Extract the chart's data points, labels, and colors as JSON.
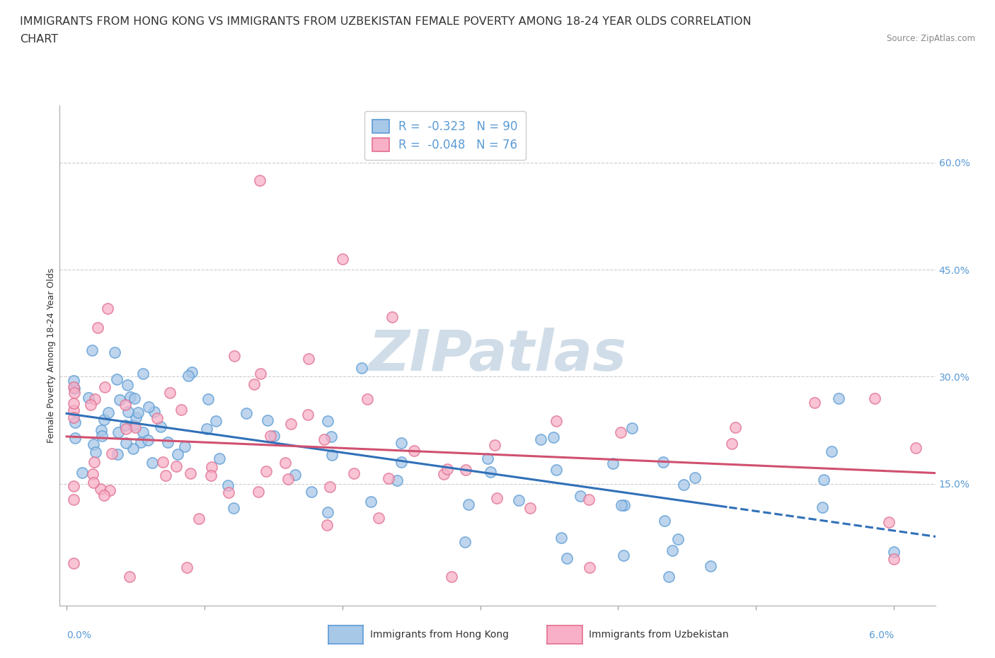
{
  "title_line1": "IMMIGRANTS FROM HONG KONG VS IMMIGRANTS FROM UZBEKISTAN FEMALE POVERTY AMONG 18-24 YEAR OLDS CORRELATION",
  "title_line2": "CHART",
  "source_text": "Source: ZipAtlas.com",
  "ylabel": "Female Poverty Among 18-24 Year Olds",
  "y_ticks": [
    0.15,
    0.3,
    0.45,
    0.6
  ],
  "y_tick_labels": [
    "15.0%",
    "30.0%",
    "45.0%",
    "60.0%"
  ],
  "xlim": [
    -0.0005,
    0.063
  ],
  "ylim": [
    -0.02,
    0.68
  ],
  "hk_R": -0.323,
  "hk_N": 90,
  "uz_R": -0.048,
  "uz_N": 76,
  "hk_color": "#a8c8e8",
  "uz_color": "#f8b0c8",
  "hk_edge_color": "#5b9bd5",
  "uz_edge_color": "#e07090",
  "hk_line_color": "#3070b8",
  "uz_line_color": "#d05070",
  "legend_label_hk": "Immigrants from Hong Kong",
  "legend_label_uz": "Immigrants from Uzbekistan",
  "background_color": "#ffffff",
  "grid_color": "#cccccc",
  "watermark_color": "#d0dde8",
  "title_fontsize": 11.5,
  "axis_label_fontsize": 9,
  "tick_fontsize": 10,
  "legend_fontsize": 12,
  "dot_size": 120,
  "line_width": 2.2,
  "trend_split_hk": 0.048
}
